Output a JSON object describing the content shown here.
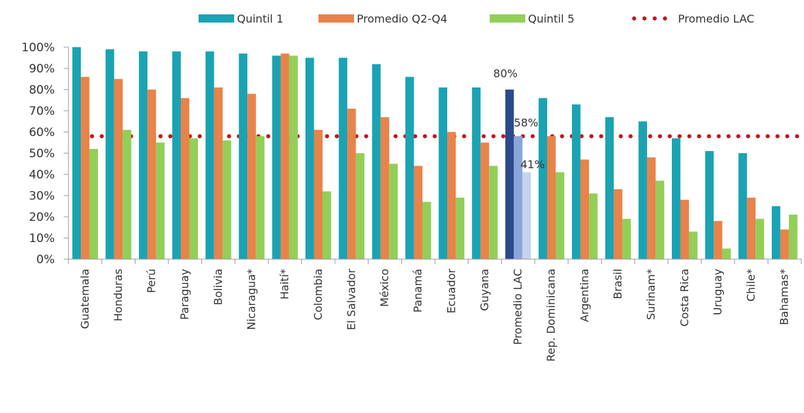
{
  "chart_data": {
    "type": "bar",
    "title": "",
    "xlabel": "",
    "ylabel": "",
    "ylim": [
      0,
      100
    ],
    "yticks": [
      "0%",
      "10%",
      "20%",
      "30%",
      "40%",
      "50%",
      "60%",
      "70%",
      "80%",
      "90%",
      "100%"
    ],
    "categories": [
      "Guatemala",
      "Honduras",
      "Perú",
      "Paraguay",
      "Bolivia",
      "Nicaragua*",
      "Haití*",
      "Colombia",
      "El Salvador",
      "México",
      "Panamá",
      "Ecuador",
      "Guyana",
      "Promedio LAC",
      "Rep. Dominicana",
      "Argentina",
      "Brasil",
      "Surinam*",
      "Costa Rica",
      "Uruguay",
      "Chile*",
      "Bahamas*"
    ],
    "series": [
      {
        "name": "Quintil 1",
        "color": "#1aa3b3",
        "values": [
          100,
          99,
          98,
          98,
          98,
          97,
          96,
          95,
          95,
          92,
          86,
          81,
          81,
          80,
          76,
          73,
          67,
          65,
          57,
          51,
          50,
          25
        ]
      },
      {
        "name": "Promedio Q2-Q4",
        "color": "#e8834a",
        "values": [
          86,
          85,
          80,
          76,
          81,
          78,
          97,
          61,
          71,
          67,
          44,
          60,
          55,
          58,
          58,
          47,
          33,
          48,
          28,
          18,
          29,
          14
        ]
      },
      {
        "name": "Quintil 5",
        "color": "#92cf58",
        "values": [
          52,
          61,
          55,
          57,
          56,
          58,
          96,
          32,
          50,
          45,
          27,
          29,
          44,
          41,
          41,
          31,
          19,
          37,
          13,
          5,
          19,
          21
        ]
      }
    ],
    "highlight": {
      "category": "Promedio LAC",
      "colors": [
        "#2b4a8b",
        "#8aa5da",
        "#c5d3f0"
      ]
    },
    "reference_line": {
      "name": "Promedio LAC",
      "value": 58,
      "color": "#c0171c",
      "style": "dotted"
    },
    "data_labels": [
      {
        "category": "Promedio LAC",
        "series": 0,
        "text": "80%"
      },
      {
        "category": "Promedio LAC",
        "series": 1,
        "text": "58%"
      },
      {
        "category": "Promedio LAC",
        "series": 2,
        "text": "41%"
      }
    ],
    "legend_position": "top"
  }
}
